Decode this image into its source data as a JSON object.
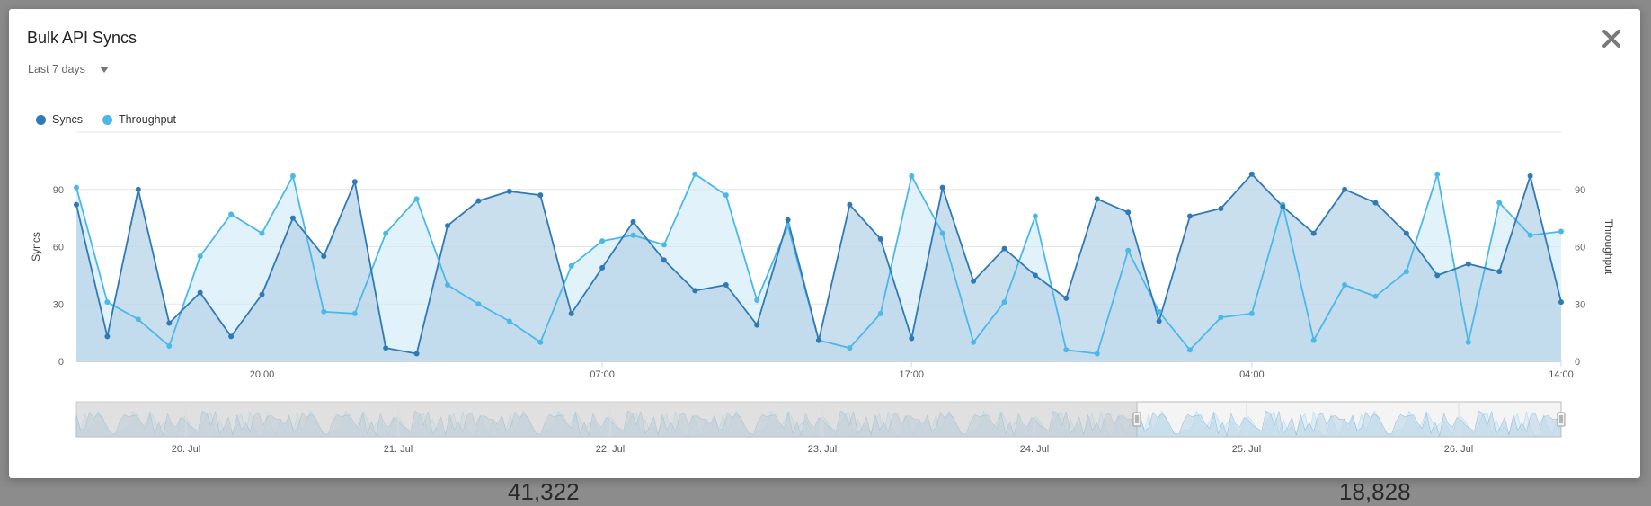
{
  "background": {
    "left_number": "41,322",
    "right_number": "18,828"
  },
  "modal": {
    "title": "Bulk API Syncs",
    "range_label": "Last 7 days",
    "close_label": "✕"
  },
  "colors": {
    "syncs": "#2f7ab5",
    "throughput": "#4cb8e8",
    "syncs_fill": "#b8d4e8",
    "throughput_fill": "#cde9f6",
    "grid": "#e6e6e6"
  },
  "icons": {
    "close": "close-icon",
    "dropdown": "chevron-down-icon"
  },
  "chart_data": {
    "type": "line",
    "title": "Bulk API Syncs",
    "ylabel_left": "Syncs",
    "ylabel_right": "Throughput",
    "ylim": [
      0,
      120
    ],
    "yticks": [
      0,
      30,
      60,
      90
    ],
    "grid": true,
    "legend_position": "top-left",
    "x_tick_labels": [
      "20:00",
      "07:00",
      "17:00",
      "04:00",
      "14:00"
    ],
    "x_tick_index": [
      6,
      17,
      27,
      38,
      48
    ],
    "series": [
      {
        "name": "Syncs",
        "values": [
          82,
          13,
          90,
          20,
          36,
          13,
          35,
          75,
          55,
          94,
          7,
          4,
          71,
          84,
          89,
          87,
          25,
          49,
          73,
          53,
          37,
          40,
          19,
          74,
          11,
          82,
          64,
          12,
          91,
          42,
          59,
          45,
          33,
          85,
          78,
          21,
          76,
          80,
          98,
          81,
          67,
          90,
          83,
          67,
          45,
          51,
          47,
          97,
          31
        ]
      },
      {
        "name": "Throughput",
        "values": [
          91,
          31,
          22,
          8,
          55,
          77,
          67,
          97,
          26,
          25,
          67,
          85,
          40,
          30,
          21,
          10,
          50,
          63,
          66,
          61,
          98,
          87,
          32,
          71,
          11,
          7,
          25,
          97,
          67,
          10,
          31,
          76,
          6,
          4,
          58,
          26,
          6,
          23,
          25,
          82,
          11,
          40,
          34,
          47,
          98,
          10,
          83,
          66,
          68
        ]
      }
    ],
    "navigator": {
      "date_labels": [
        "20. Jul",
        "21. Jul",
        "22. Jul",
        "23. Jul",
        "24. Jul",
        "25. Jul",
        "26. Jul"
      ],
      "selected_range_label": "25. Jul – 26. Jul"
    }
  }
}
